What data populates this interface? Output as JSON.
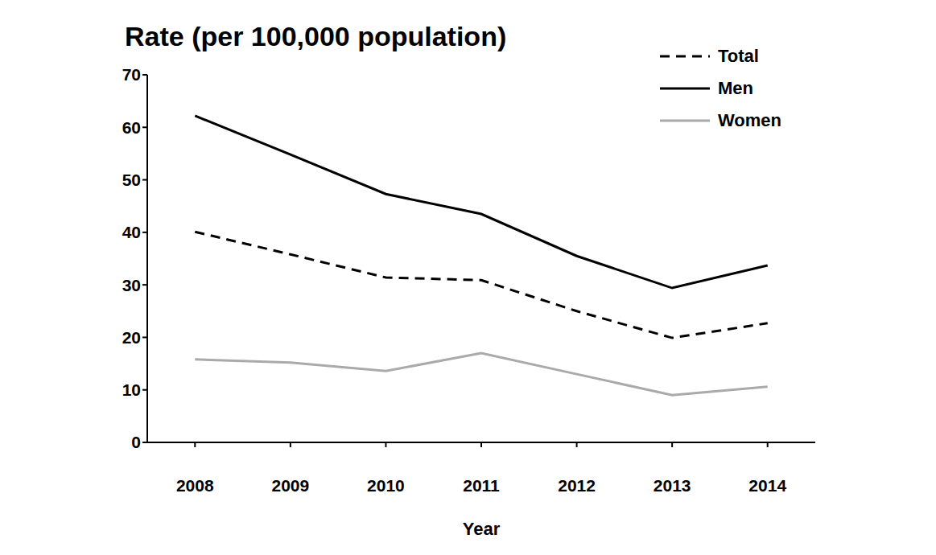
{
  "chart_data": {
    "type": "line",
    "title": "Rate (per 100,000 population)",
    "x_label": "Year",
    "categories": [
      "2008",
      "2009",
      "2010",
      "2011",
      "2012",
      "2013",
      "2014"
    ],
    "series": [
      {
        "name": "Total",
        "color": "#000000",
        "line_style": "dashed",
        "values": [
          40.1,
          35.8,
          31.4,
          30.9,
          25.0,
          19.9,
          22.7
        ]
      },
      {
        "name": "Men",
        "color": "#000000",
        "line_style": "solid",
        "values": [
          62.2,
          54.8,
          47.3,
          43.5,
          35.5,
          29.4,
          33.7
        ]
      },
      {
        "name": "Women",
        "color": "#aaaaaa",
        "line_style": "solid",
        "values": [
          15.8,
          15.2,
          13.6,
          17.0,
          13.0,
          9.0,
          10.6
        ]
      }
    ],
    "ylim": [
      0,
      70
    ],
    "yticks": [
      0,
      10,
      20,
      30,
      40,
      50,
      60,
      70
    ],
    "grid": false,
    "legend": "upper right"
  }
}
